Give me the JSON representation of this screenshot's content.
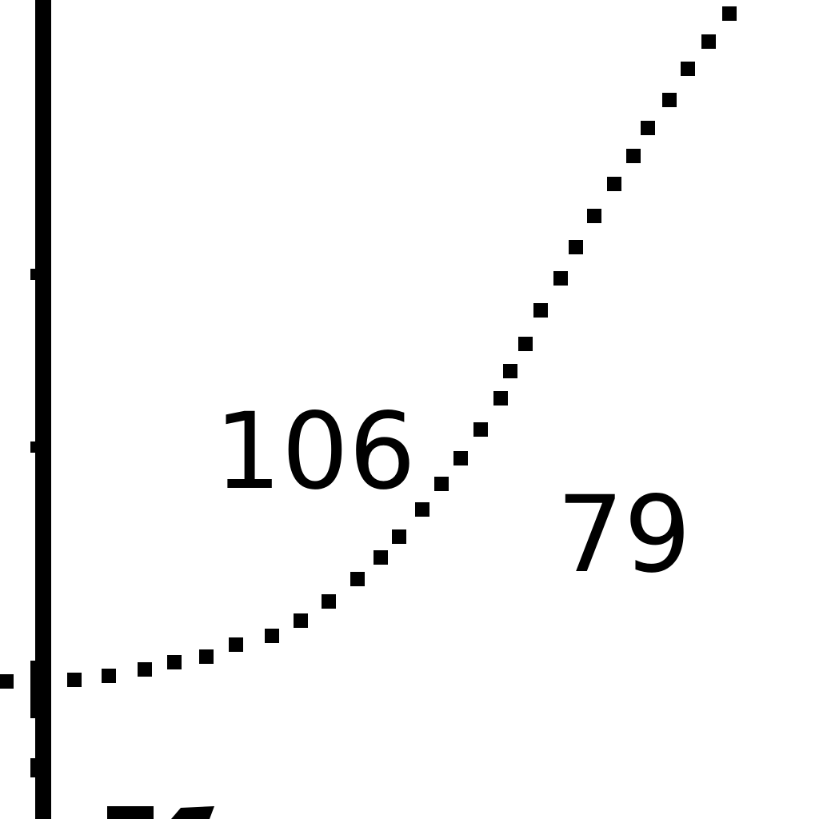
{
  "colors": {
    "ink": "#000000",
    "background": "#ffffff"
  },
  "labels": {
    "upper_region": "106",
    "lower_region": "79"
  }
}
